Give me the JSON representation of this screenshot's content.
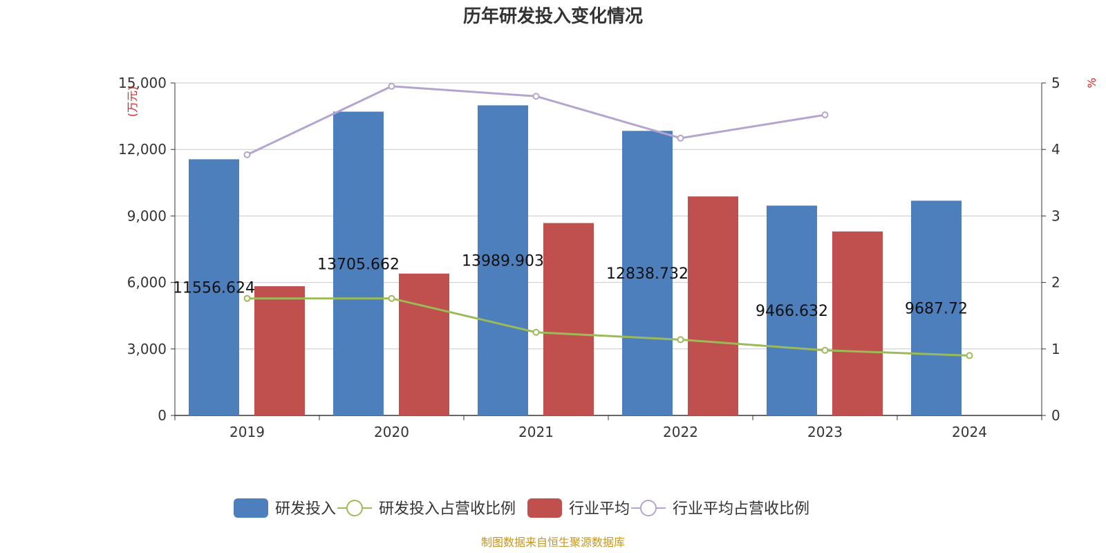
{
  "chart_data": {
    "type": "bar",
    "title": "历年研发投入变化情况",
    "categories": [
      "2019",
      "2020",
      "2021",
      "2022",
      "2023",
      "2024"
    ],
    "y_left": {
      "unit": "(万元)",
      "ylim": [
        0,
        15000
      ],
      "ticks": [
        "0",
        "3,000",
        "6,000",
        "9,000",
        "12,000",
        "15,000"
      ],
      "tick_values": [
        0,
        3000,
        6000,
        9000,
        12000,
        15000
      ]
    },
    "y_right": {
      "unit": "%",
      "ylim": [
        0,
        5
      ],
      "ticks": [
        "0",
        "1",
        "2",
        "3",
        "4",
        "5"
      ],
      "tick_values": [
        0,
        1,
        2,
        3,
        4,
        5
      ]
    },
    "series": [
      {
        "name": "研发投入",
        "kind": "bar",
        "axis": "left",
        "color": "#4e7fbd",
        "values": [
          11556.624,
          13705.662,
          13989.903,
          12838.732,
          9466.632,
          9687.72
        ],
        "labels": [
          "11556.624",
          "13705.662",
          "13989.903",
          "12838.732",
          "9466.632",
          "9687.72"
        ]
      },
      {
        "name": "研发投入占营收比例",
        "kind": "line",
        "axis": "right",
        "color": "#9bbb59",
        "values": [
          1.76,
          1.76,
          1.25,
          1.14,
          0.98,
          0.9
        ]
      },
      {
        "name": "行业平均",
        "kind": "bar",
        "axis": "left",
        "color": "#c0504d",
        "values": [
          5830,
          6400,
          8680,
          9880,
          8300,
          null
        ]
      },
      {
        "name": "行业平均占营收比例",
        "kind": "line",
        "axis": "right",
        "color": "#b3a5cf",
        "values": [
          3.92,
          4.95,
          4.8,
          4.17,
          4.52,
          null
        ]
      }
    ],
    "grid": true,
    "legend_position": "bottom"
  },
  "source_text": "制图数据来自恒生聚源数据库"
}
